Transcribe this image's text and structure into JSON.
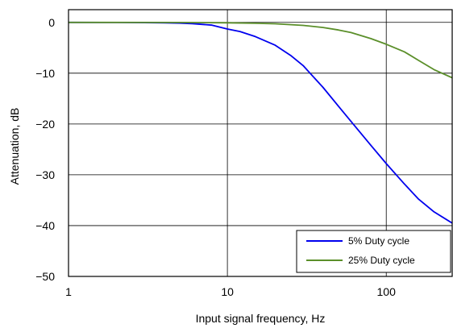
{
  "chart_data": {
    "type": "line",
    "title": "",
    "xlabel": "Input signal frequency, Hz",
    "ylabel": "Attenuation, dB",
    "x_scale": "log",
    "xlim": [
      1,
      260
    ],
    "ylim": [
      -50,
      2.5
    ],
    "x_ticks": [
      1,
      10,
      100
    ],
    "x_tick_labels": [
      "1",
      "10",
      "100"
    ],
    "y_ticks": [
      0,
      -10,
      -20,
      -30,
      -40,
      -50
    ],
    "y_tick_labels": [
      "0",
      "−10",
      "−20",
      "−30",
      "−40",
      "−50"
    ],
    "grid": true,
    "legend_position": "bottom-right",
    "series": [
      {
        "name": "5% Duty cycle",
        "color": "#0000ee",
        "x": [
          1,
          2,
          3,
          4,
          5,
          6,
          7,
          8,
          10,
          12,
          15,
          20,
          25,
          30,
          40,
          50,
          60,
          80,
          100,
          130,
          160,
          200,
          260
        ],
        "y": [
          0,
          -0.02,
          -0.05,
          -0.1,
          -0.15,
          -0.25,
          -0.4,
          -0.55,
          -1.3,
          -1.8,
          -2.8,
          -4.5,
          -6.5,
          -8.5,
          -12.8,
          -16.5,
          -19.5,
          -24.2,
          -27.8,
          -31.8,
          -34.8,
          -37.3,
          -39.5
        ]
      },
      {
        "name": "25% Duty cycle",
        "color": "#5b8f2a",
        "x": [
          1,
          5,
          10,
          15,
          20,
          30,
          40,
          50,
          60,
          80,
          100,
          130,
          160,
          200,
          260
        ],
        "y": [
          0,
          -0.02,
          -0.08,
          -0.18,
          -0.28,
          -0.6,
          -1.0,
          -1.5,
          -2.0,
          -3.2,
          -4.3,
          -5.8,
          -7.5,
          -9.3,
          -10.9
        ]
      }
    ]
  }
}
